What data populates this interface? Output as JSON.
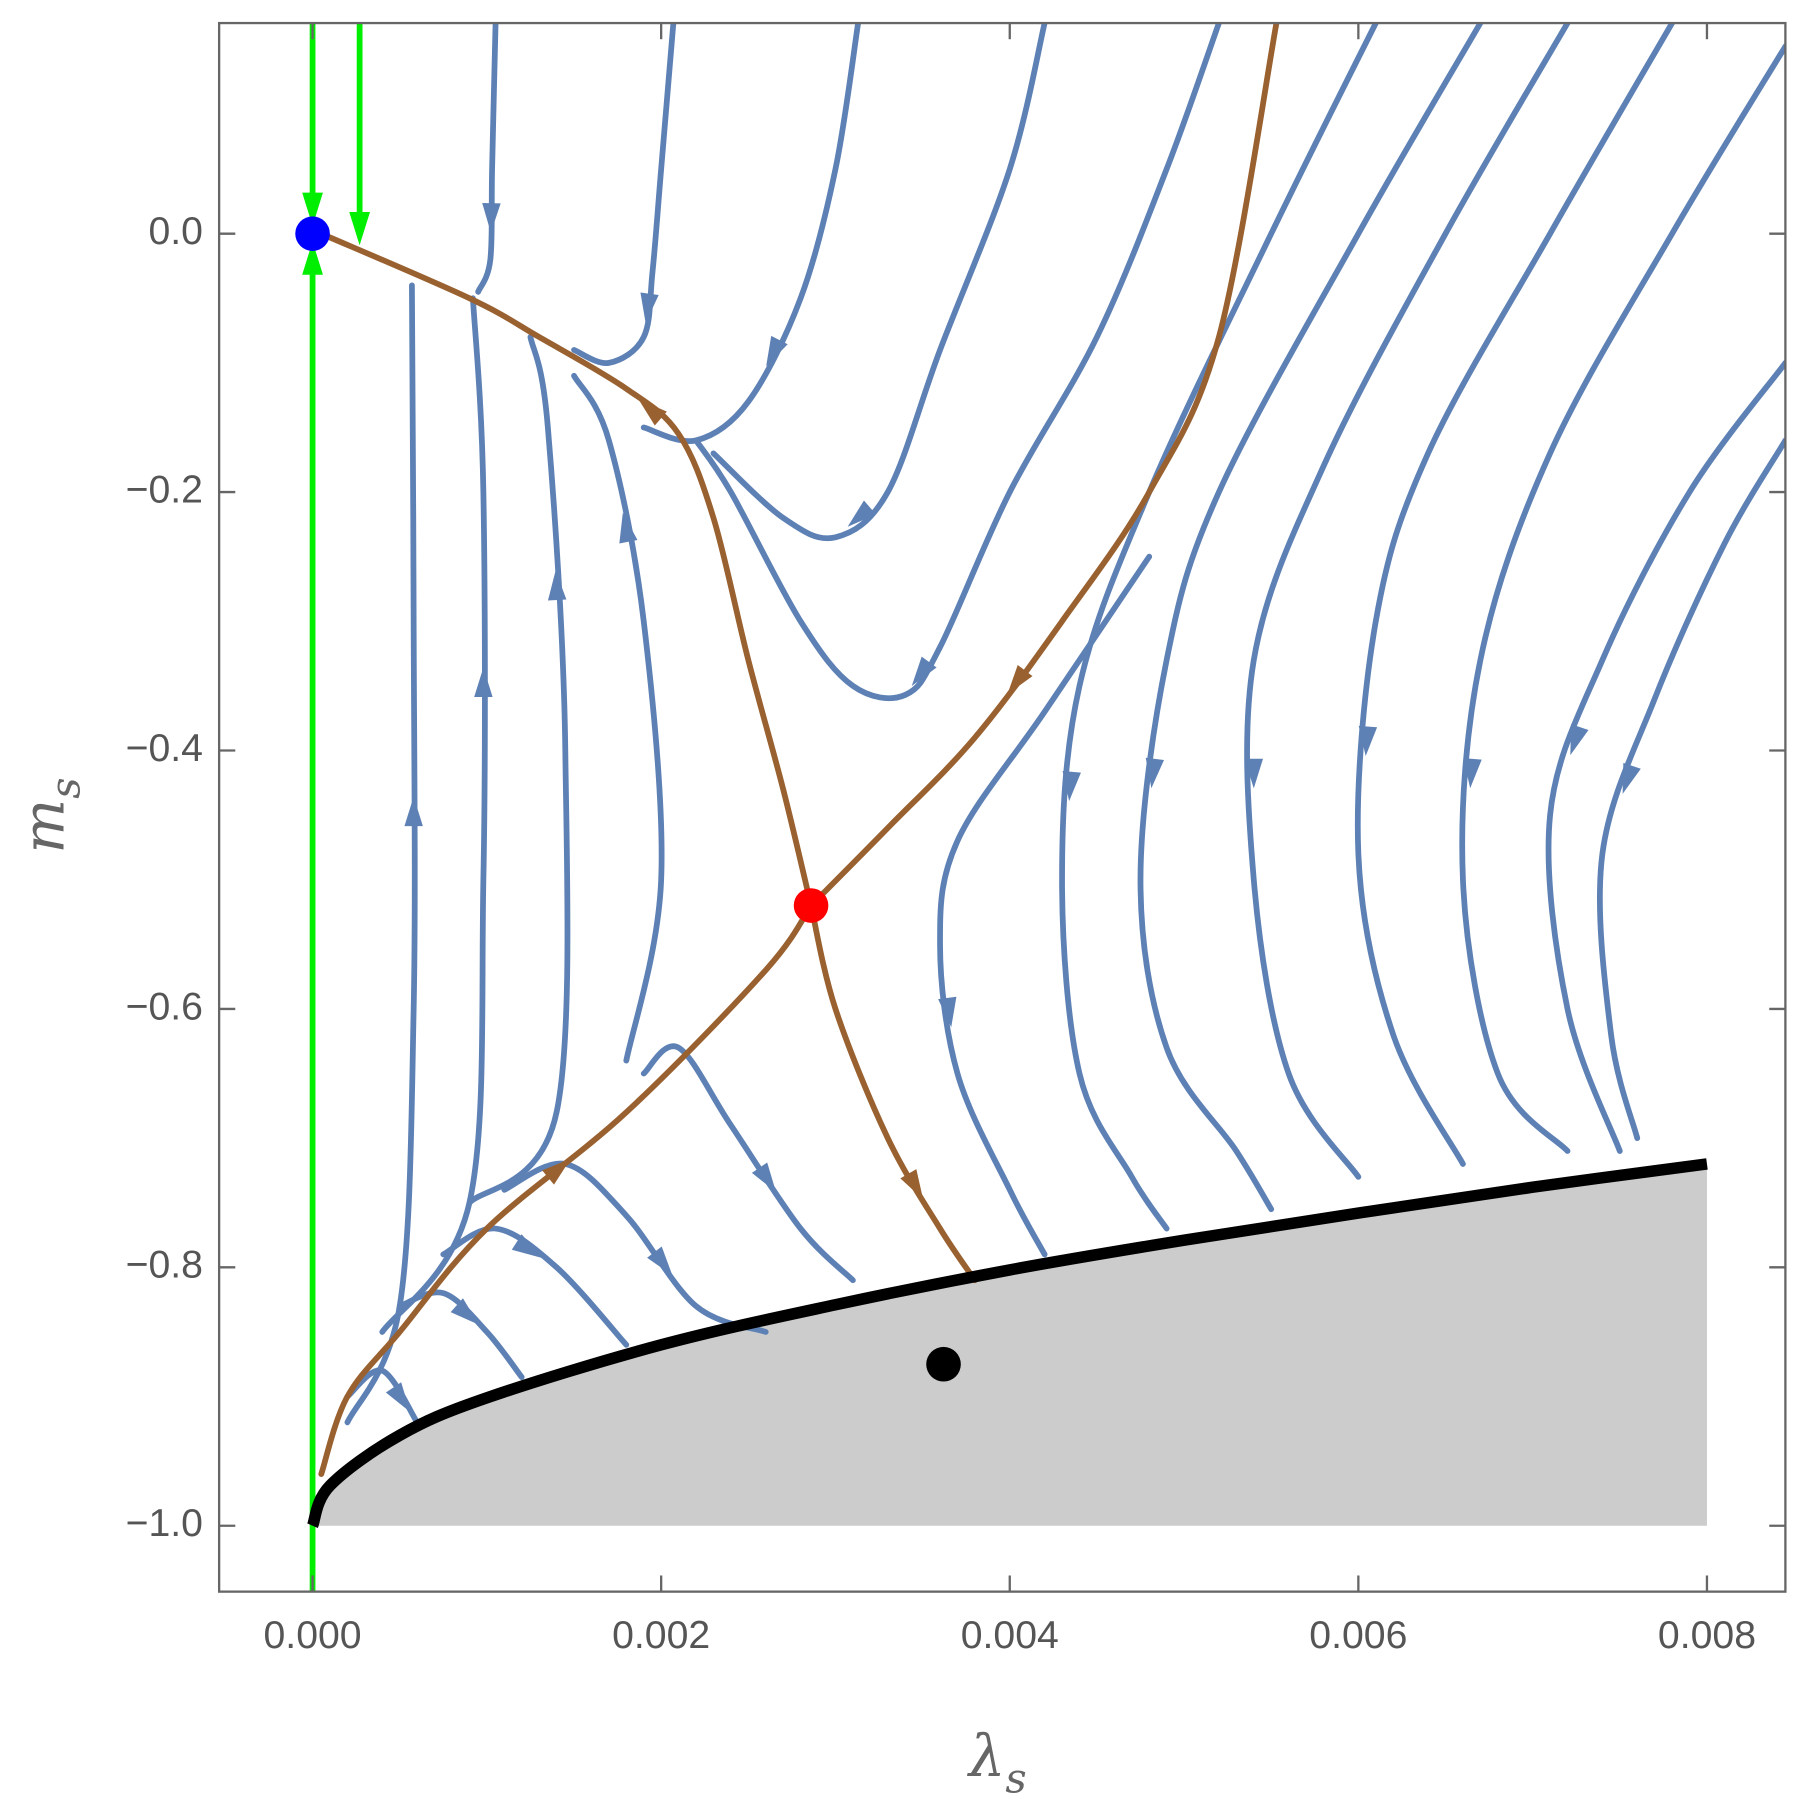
{
  "chart_data": {
    "type": "streamplot",
    "xlabel": {
      "symbol": "λ",
      "subscript": "s"
    },
    "ylabel": {
      "symbol": "m",
      "subscript": "s"
    },
    "xlim": [
      -0.000536,
      0.00845
    ],
    "ylim": [
      -1.051,
      0.163
    ],
    "xticks": [
      {
        "value": 0,
        "label": "0.000"
      },
      {
        "value": 0.002,
        "label": "0.002"
      },
      {
        "value": 0.004,
        "label": "0.004"
      },
      {
        "value": 0.006,
        "label": "0.006"
      },
      {
        "value": 0.008,
        "label": "0.008"
      }
    ],
    "yticks": [
      {
        "value": 0,
        "label": "0.0"
      },
      {
        "value": -0.2,
        "label": "−0.2"
      },
      {
        "value": -0.4,
        "label": "−0.4"
      },
      {
        "value": -0.6,
        "label": "−0.6"
      },
      {
        "value": -0.8,
        "label": "−0.8"
      },
      {
        "value": -1,
        "label": "−1.0"
      }
    ],
    "stream_color": "#5e81b5",
    "streamlines": [
      {
        "x": [
          0.00105,
          0.00103,
          0.00102,
          0.00095
        ],
        "y": [
          0.163,
          0.05,
          -0.02,
          -0.045
        ]
      },
      {
        "x": [
          0.00207,
          0.002,
          0.00195,
          0.0019,
          0.0017,
          0.0015
        ],
        "y": [
          0.163,
          0.05,
          -0.03,
          -0.08,
          -0.1,
          -0.09
        ]
      },
      {
        "x": [
          0.00313,
          0.003,
          0.0028,
          0.0025,
          0.0022,
          0.0019
        ],
        "y": [
          0.163,
          0.05,
          -0.05,
          -0.13,
          -0.16,
          -0.15
        ]
      },
      {
        "x": [
          0.0042,
          0.004,
          0.0036,
          0.0033,
          0.003,
          0.0027,
          0.0023
        ],
        "y": [
          0.163,
          0.05,
          -0.09,
          -0.2,
          -0.235,
          -0.22,
          -0.17
        ]
      },
      {
        "x": [
          0.0052,
          0.0049,
          0.0045,
          0.004,
          0.0036,
          0.0034,
          0.0031,
          0.0028,
          0.0024,
          0.0022
        ],
        "y": [
          0.163,
          0.05,
          -0.08,
          -0.2,
          -0.32,
          -0.357,
          -0.35,
          -0.3,
          -0.2,
          -0.16
        ]
      },
      {
        "x": [
          0.0002,
          0.0005,
          0.00058,
          0.00058,
          0.00057
        ],
        "y": [
          -0.92,
          -0.83,
          -0.6,
          -0.3,
          -0.04
        ]
      },
      {
        "x": [
          0.0004,
          0.0009,
          0.00098,
          0.00098,
          0.00092
        ],
        "y": [
          -0.85,
          -0.75,
          -0.5,
          -0.2,
          -0.05
        ]
      },
      {
        "x": [
          0.0009,
          0.0014,
          0.00145,
          0.00135,
          0.00125
        ],
        "y": [
          -0.75,
          -0.68,
          -0.4,
          -0.15,
          -0.08
        ]
      },
      {
        "x": [
          0.0018,
          0.002,
          0.0019,
          0.0017,
          0.0015
        ],
        "y": [
          -0.64,
          -0.5,
          -0.3,
          -0.16,
          -0.11
        ]
      },
      {
        "x": [
          0.0019,
          0.0021,
          0.0024,
          0.0028,
          0.0031
        ],
        "y": [
          -0.65,
          -0.63,
          -0.69,
          -0.77,
          -0.81
        ]
      },
      {
        "x": [
          0.0011,
          0.00145,
          0.0018,
          0.0022,
          0.0026
        ],
        "y": [
          -0.74,
          -0.72,
          -0.76,
          -0.83,
          -0.85
        ]
      },
      {
        "x": [
          0.00075,
          0.00105,
          0.0014,
          0.0018
        ],
        "y": [
          -0.79,
          -0.77,
          -0.8,
          -0.86
        ]
      },
      {
        "x": [
          0.0005,
          0.00075,
          0.001,
          0.0012
        ],
        "y": [
          -0.83,
          -0.82,
          -0.85,
          -0.885
        ]
      },
      {
        "x": [
          0.0002,
          0.0004,
          0.0006
        ],
        "y": [
          -0.9,
          -0.88,
          -0.92
        ]
      },
      {
        "x": [
          0.0048,
          0.0042,
          0.0037,
          0.0036,
          0.0037,
          0.004,
          0.0042
        ],
        "y": [
          -0.25,
          -0.37,
          -0.47,
          -0.55,
          -0.65,
          -0.74,
          -0.79
        ]
      },
      {
        "x": [
          0.0061,
          0.0055,
          0.0048,
          0.0044,
          0.0043,
          0.0044,
          0.0047,
          0.0049
        ],
        "y": [
          0.163,
          0,
          -0.2,
          -0.35,
          -0.5,
          -0.65,
          -0.73,
          -0.77
        ]
      },
      {
        "x": [
          0.0067,
          0.006,
          0.0052,
          0.0049,
          0.00475,
          0.0049,
          0.0053,
          0.0055
        ],
        "y": [
          0.163,
          0,
          -0.2,
          -0.33,
          -0.5,
          -0.63,
          -0.71,
          -0.755
        ]
      },
      {
        "x": [
          0.0072,
          0.0065,
          0.0058,
          0.0054,
          0.0054,
          0.0056,
          0.006
        ],
        "y": [
          0.163,
          0,
          -0.18,
          -0.33,
          -0.5,
          -0.65,
          -0.73
        ]
      },
      {
        "x": [
          0.0078,
          0.0071,
          0.0064,
          0.0061,
          0.006,
          0.0062,
          0.0066
        ],
        "y": [
          0.163,
          0,
          -0.17,
          -0.3,
          -0.48,
          -0.62,
          -0.72
        ]
      },
      {
        "x": [
          0.00845,
          0.0078,
          0.0071,
          0.0067,
          0.0066,
          0.0068,
          0.0072
        ],
        "y": [
          0.145,
          0,
          -0.17,
          -0.33,
          -0.5,
          -0.65,
          -0.71
        ]
      },
      {
        "x": [
          0.00845,
          0.0079,
          0.0074,
          0.0071,
          0.0072,
          0.0075
        ],
        "y": [
          -0.1,
          -0.2,
          -0.33,
          -0.45,
          -0.6,
          -0.71
        ]
      },
      {
        "x": [
          0.00845,
          0.0081,
          0.0077,
          0.0074,
          0.00745,
          0.0076
        ],
        "y": [
          -0.16,
          -0.24,
          -0.36,
          -0.48,
          -0.62,
          -0.7
        ]
      }
    ],
    "separatrix_color": "#9a6130",
    "separatrices": [
      {
        "x": [
          0.00286,
          0.0027,
          0.0025,
          0.0023,
          0.0021,
          0.0018,
          0.0013,
          0.0009,
          5e-05
        ],
        "y": [
          -0.52,
          -0.43,
          -0.33,
          -0.22,
          -0.155,
          -0.12,
          -0.08,
          -0.05,
          0
        ]
      },
      {
        "x": [
          0.00286,
          0.003,
          0.0033,
          0.0036,
          0.0038
        ],
        "y": [
          -0.52,
          -0.6,
          -0.7,
          -0.77,
          -0.81
        ]
      },
      {
        "x": [
          5e-05,
          0.0002,
          0.0005,
          0.001,
          0.0018,
          0.0026,
          0.00286
        ],
        "y": [
          -0.96,
          -0.9,
          -0.85,
          -0.77,
          -0.68,
          -0.57,
          -0.52
        ]
      },
      {
        "x": [
          0.00553,
          0.0052,
          0.0048,
          0.0043,
          0.0038,
          0.0033,
          0.00286
        ],
        "y": [
          0.163,
          -0.08,
          -0.2,
          -0.3,
          -0.39,
          -0.46,
          -0.52
        ]
      }
    ],
    "guide_color": "#00ee00",
    "guides": [
      {
        "x": [
          0,
          0
        ],
        "y": [
          0.163,
          0.015
        ]
      },
      {
        "x": [
          0.00027,
          0.00027
        ],
        "y": [
          0.163,
          0
        ]
      },
      {
        "x": [
          0,
          0
        ],
        "y": [
          -1.051,
          -0.015
        ]
      }
    ],
    "boundary": {
      "color": "#000000",
      "fill": "#cccccc",
      "x": [
        0,
        0.0001,
        0.0005,
        0.001,
        0.002,
        0.003,
        0.004,
        0.005,
        0.006,
        0.007,
        0.008
      ],
      "y": [
        -1,
        -0.969,
        -0.93,
        -0.901,
        -0.86,
        -0.829,
        -0.802,
        -0.779,
        -0.758,
        -0.738,
        -0.72
      ]
    },
    "points": [
      {
        "x": 0,
        "y": 0,
        "color": "#0000ff"
      },
      {
        "x": 0.00286,
        "y": -0.52,
        "color": "#ff0000"
      },
      {
        "x": 0.00362,
        "y": -0.875,
        "color": "#000000"
      }
    ]
  }
}
